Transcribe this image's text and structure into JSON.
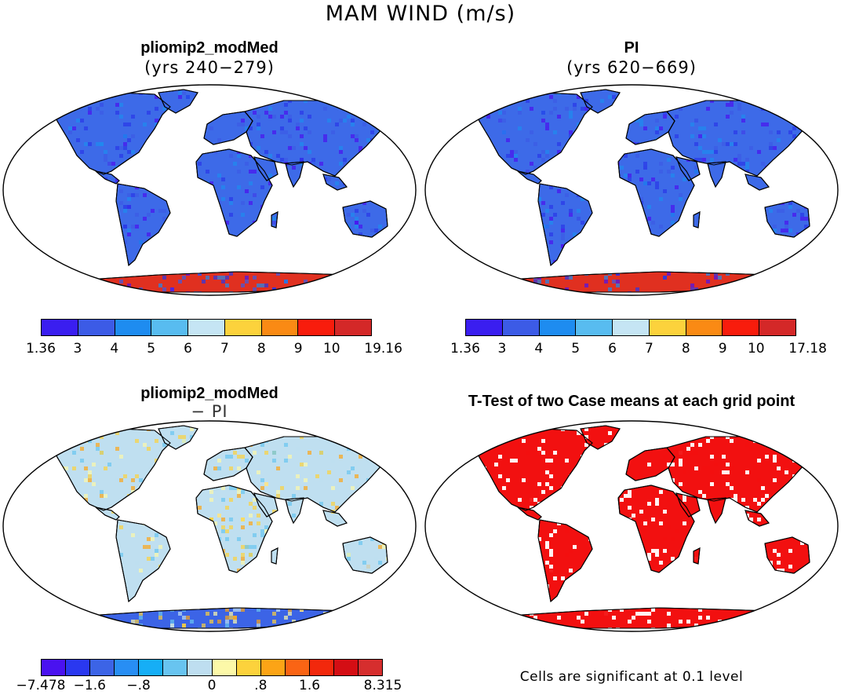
{
  "figure": {
    "title": "MAM WIND (m/s)"
  },
  "panels": {
    "top_left": {
      "title": "pliomip2_modMed",
      "subtitle": "(yrs 240−279)"
    },
    "top_right": {
      "title": "PI",
      "subtitle": "(yrs 620−669)"
    },
    "bottom_left": {
      "title": "pliomip2_modMed",
      "subtitle": "− PI"
    },
    "bottom_right": {
      "title": "T-Test of two Case means at each grid point",
      "note": "Cells are significant at 0.1 level"
    }
  },
  "colorbars": {
    "top_left": {
      "colors": [
        "#3a1ef0",
        "#3c5be6",
        "#1e8cf0",
        "#58bcf0",
        "#c5e5f4",
        "#fcd23c",
        "#fa8a14",
        "#f81c0c",
        "#d42828"
      ],
      "labels": [
        "1.36",
        "3",
        "4",
        "5",
        "6",
        "7",
        "8",
        "9",
        "10",
        "19.16"
      ]
    },
    "top_right": {
      "colors": [
        "#3a1ef0",
        "#3c5be6",
        "#1e8cf0",
        "#58bcf0",
        "#c5e5f4",
        "#fcd23c",
        "#fa8a14",
        "#f81c0c",
        "#d42828"
      ],
      "labels": [
        "1.36",
        "3",
        "4",
        "5",
        "6",
        "7",
        "8",
        "9",
        "10",
        "17.18"
      ]
    },
    "bottom_left": {
      "colors": [
        "#4a12f0",
        "#2a38f0",
        "#3c64e6",
        "#288ef4",
        "#16aef6",
        "#68c4f0",
        "#bedef0",
        "#fcf8a8",
        "#fcd23c",
        "#fca416",
        "#fa6414",
        "#f2280c",
        "#d40e14",
        "#d62e2e"
      ],
      "labels": [
        "−7.478",
        "−1.6",
        "−.8",
        "0",
        ".8",
        "1.6",
        "8.315"
      ]
    }
  },
  "map_colors": {
    "ocean": "#ffffff",
    "land_top_left": "#3d6ae8",
    "land_top_right": "#3d6ae8",
    "land_bottom_left": "#bfdff0",
    "land_bottom_right": "#f21010",
    "antarctica_top": "#e03020",
    "coastline": "#000000"
  }
}
